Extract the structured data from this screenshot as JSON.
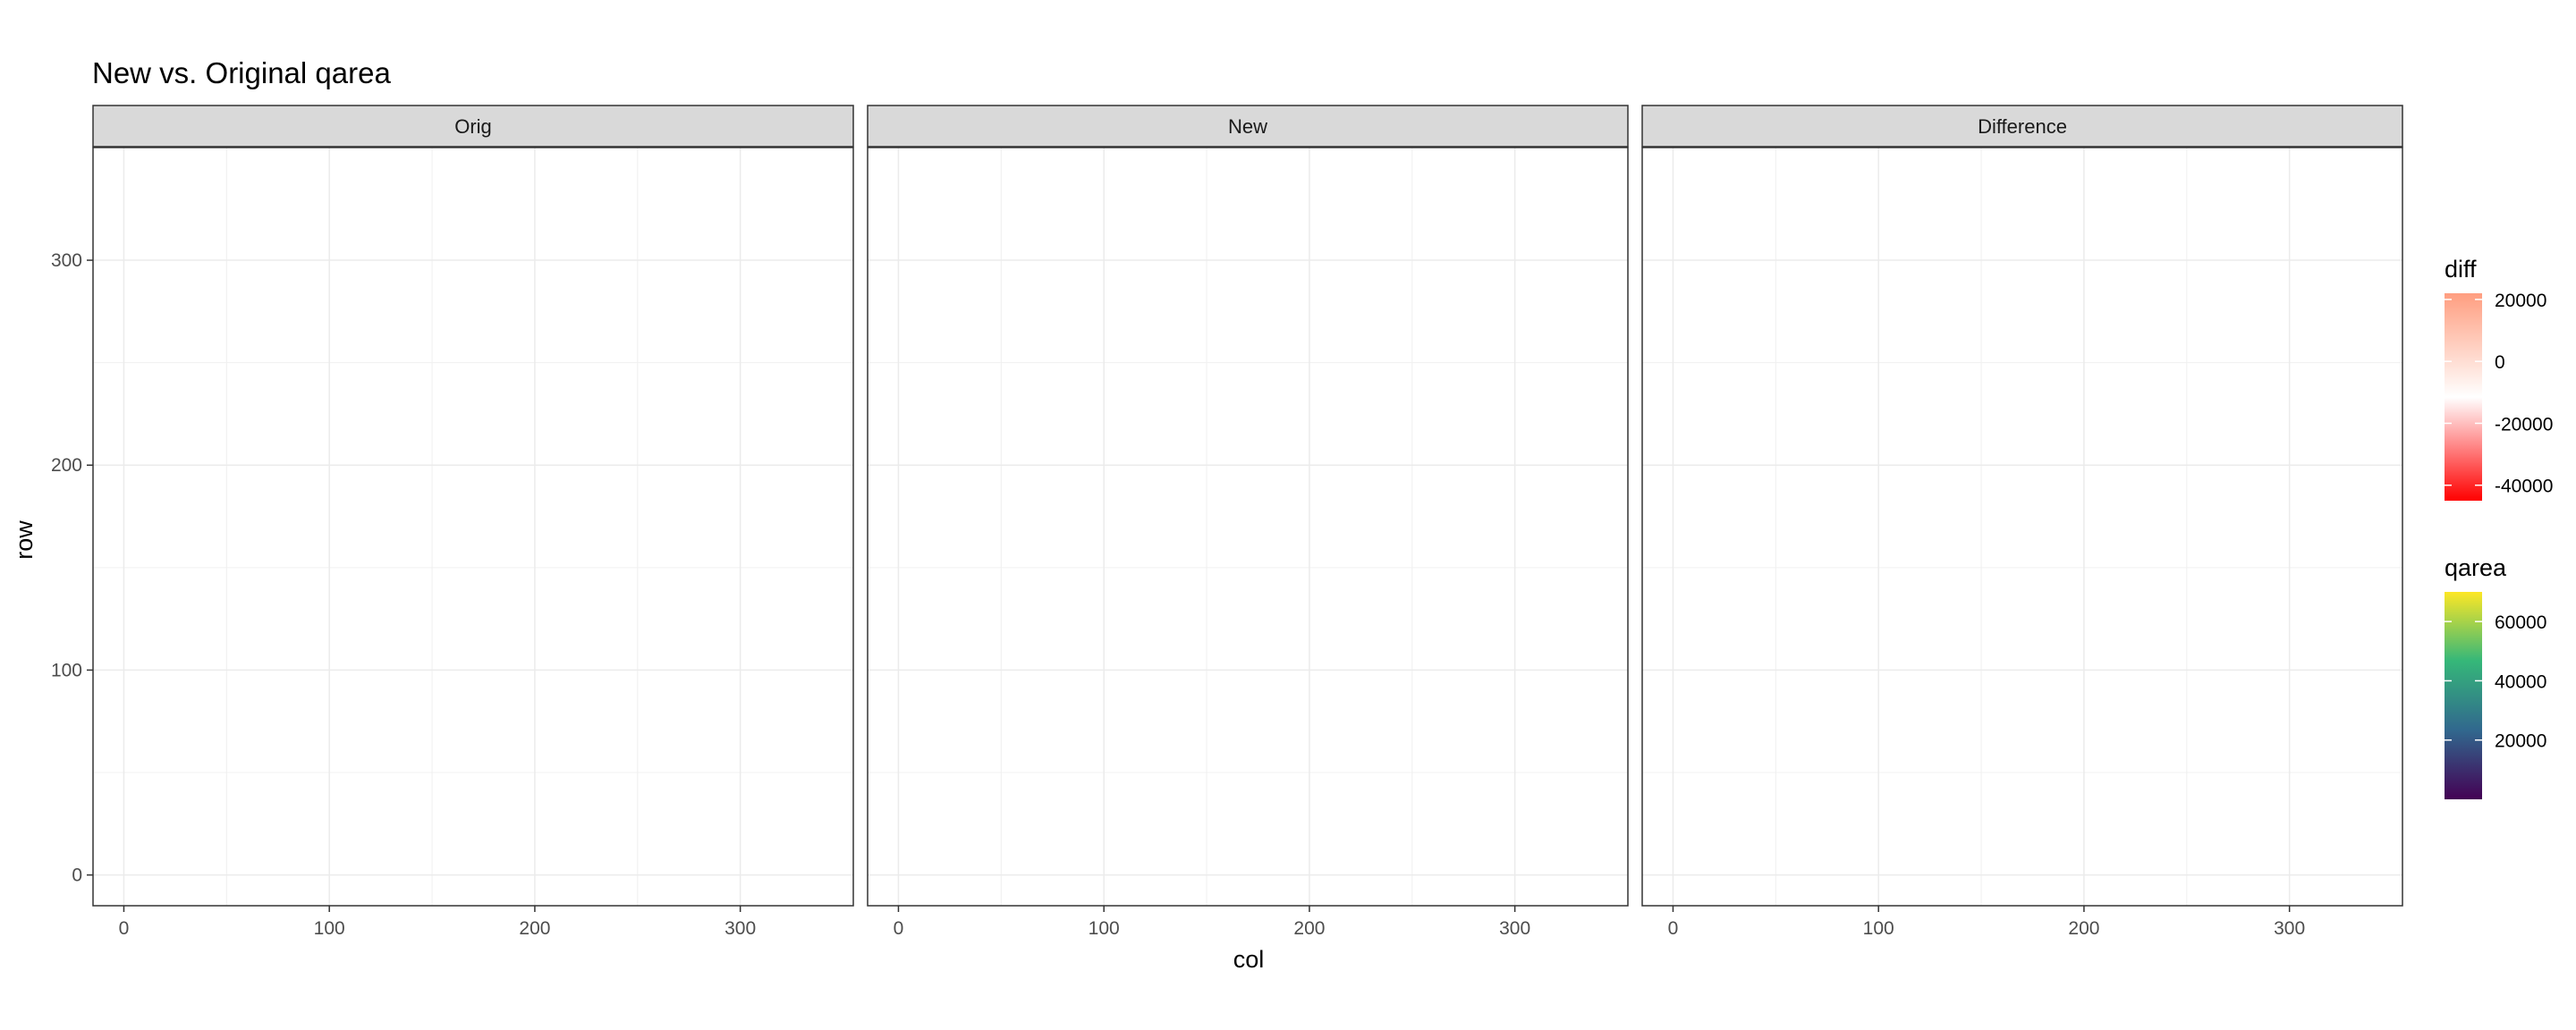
{
  "chart_data": {
    "type": "heatmap",
    "title": "New vs. Original qarea",
    "xlabel": "col",
    "ylabel": "row",
    "xlim": [
      -15,
      355
    ],
    "ylim": [
      355,
      -15
    ],
    "x_ticks": [
      0,
      100,
      200,
      300
    ],
    "y_ticks": [
      0,
      100,
      200,
      300
    ],
    "grid": true,
    "panels": [
      {
        "label": "Orig",
        "fill": "qarea"
      },
      {
        "label": "New",
        "fill": "qarea"
      },
      {
        "label": "Difference",
        "fill": "diff"
      }
    ],
    "raster_extent": {
      "col": [
        1,
        340
      ],
      "row": [
        1,
        340
      ]
    },
    "legends": [
      {
        "title": "diff",
        "breaks": [
          20000,
          0,
          -20000,
          -40000
        ],
        "range": [
          -45000,
          22000
        ],
        "colors": [
          "#FF0000",
          "#FFFFFF",
          "#FF9E80"
        ]
      },
      {
        "title": "qarea",
        "breaks": [
          60000,
          40000,
          20000
        ],
        "range": [
          0,
          70000
        ],
        "colors": [
          "#440154",
          "#31688E",
          "#35B779",
          "#FDE725"
        ]
      }
    ],
    "background_fill": "#440154",
    "diff_zero_fill": "#FFFFFF"
  }
}
